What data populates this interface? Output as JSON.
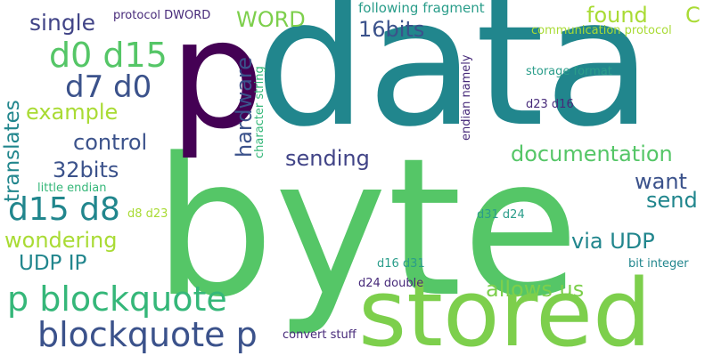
{
  "colors": {
    "background": "#ffffff",
    "teal": "#21868d",
    "green": "#55c667",
    "lime": "#7dcf4c",
    "yellowgreen": "#a9db34",
    "blue": "#3b528b",
    "navy": "#414487",
    "purple": "#440154",
    "darkpurple": "#472a7a",
    "seagreen": "#2a9d8a",
    "cyan": "#25848e",
    "mint": "#35b779"
  },
  "words": {
    "data": "data",
    "byte": "byte",
    "stored": "stored",
    "p": "p",
    "p_blockquote": "p blockquote",
    "blockquote_p": "blockquote p",
    "d0_d15": "d0 d15",
    "d7_d0": "d7 d0",
    "d15_d8": "d15 d8",
    "single": "single",
    "example": "example",
    "control": "control",
    "translates": "translates",
    "32bits": "32bits",
    "wondering": "wondering",
    "udp_ip": "UDP IP",
    "word": "WORD",
    "16bits": "16bits",
    "found": "found",
    "c": "C",
    "hardware": "hardware",
    "sending": "sending",
    "documentation": "documentation",
    "want": "want",
    "send": "send",
    "via_udp": "via UDP",
    "allows_us": "allows us",
    "protocol_dword": "protocol DWORD",
    "following_fragment": "following fragment",
    "communication_protocol": "communication protocol",
    "character_string": "character string",
    "endian_namely": "endian namely",
    "storage_format": "storage format",
    "d23_d16": "d23 d16",
    "little_endian": "little endian",
    "d8_d23": "d8 d23",
    "d31_d24": "d31 d24",
    "d16_d31": "d16 d31",
    "bit_integer": "bit integer",
    "d24_double": "d24 double",
    "convert_stuff": "convert stuff"
  }
}
